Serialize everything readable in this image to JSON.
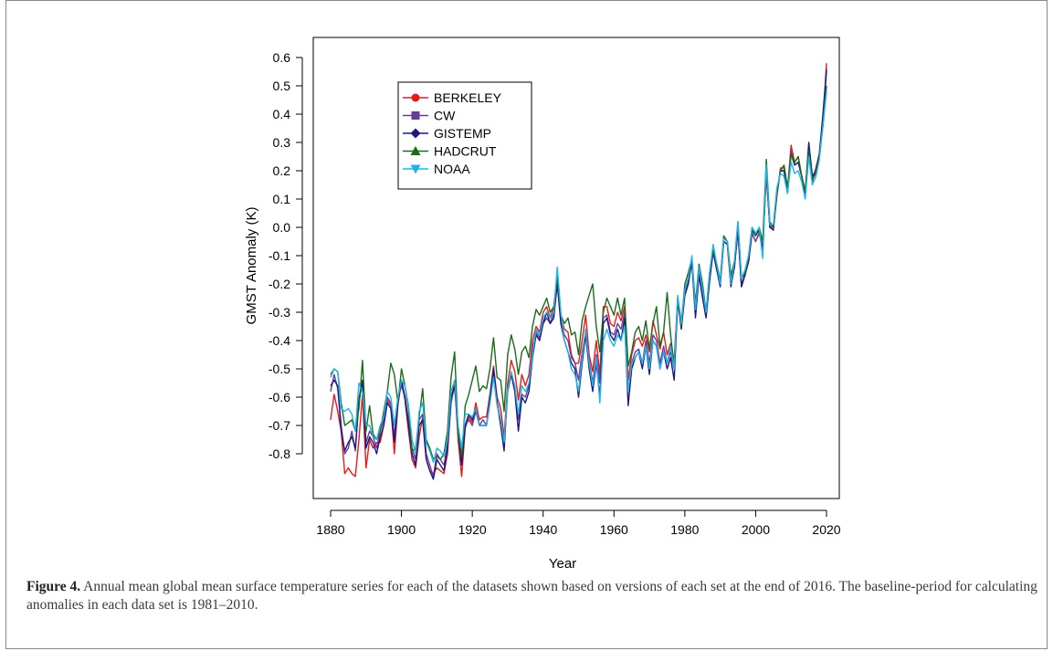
{
  "chart_data": {
    "type": "line",
    "xlabel": "Year",
    "ylabel": "GMST Anomaly (K)",
    "xlim": [
      1880,
      2020
    ],
    "ylim": [
      -0.8,
      0.6
    ],
    "x_ticks": [
      "1880",
      "1900",
      "1920",
      "1940",
      "1960",
      "1980",
      "2000",
      "2020"
    ],
    "y_ticks": [
      "0.6",
      "0.5",
      "0.4",
      "0.3",
      "0.2",
      "0.1",
      "0.0",
      "-0.1",
      "-0.2",
      "-0.3",
      "-0.4",
      "-0.5",
      "-0.6",
      "-0.7",
      "-0.8"
    ],
    "legend_position": "top-left",
    "x_start": 1880,
    "series": [
      {
        "name": "BERKELEY",
        "color": "#e41a1c",
        "marker": "circle",
        "values": [
          -0.68,
          -0.59,
          -0.65,
          -0.72,
          -0.87,
          -0.85,
          -0.87,
          -0.88,
          -0.75,
          -0.59,
          -0.85,
          -0.75,
          -0.78,
          -0.76,
          -0.76,
          -0.7,
          -0.61,
          -0.63,
          -0.8,
          -0.63,
          -0.54,
          -0.61,
          -0.72,
          -0.82,
          -0.85,
          -0.74,
          -0.67,
          -0.82,
          -0.86,
          -0.87,
          -0.85,
          -0.86,
          -0.87,
          -0.8,
          -0.62,
          -0.54,
          -0.75,
          -0.88,
          -0.71,
          -0.67,
          -0.69,
          -0.62,
          -0.68,
          -0.67,
          -0.67,
          -0.59,
          -0.49,
          -0.6,
          -0.64,
          -0.74,
          -0.55,
          -0.47,
          -0.51,
          -0.61,
          -0.52,
          -0.56,
          -0.52,
          -0.4,
          -0.35,
          -0.37,
          -0.3,
          -0.28,
          -0.32,
          -0.28,
          -0.18,
          -0.32,
          -0.36,
          -0.37,
          -0.45,
          -0.48,
          -0.48,
          -0.4,
          -0.31,
          -0.45,
          -0.51,
          -0.4,
          -0.52,
          -0.28,
          -0.28,
          -0.34,
          -0.35,
          -0.3,
          -0.33,
          -0.28,
          -0.54,
          -0.45,
          -0.4,
          -0.39,
          -0.42,
          -0.38,
          -0.44,
          -0.33,
          -0.38,
          -0.43,
          -0.37,
          -0.45,
          -0.41,
          -0.47,
          -0.25,
          -0.33,
          -0.22,
          -0.18,
          -0.13,
          -0.28,
          -0.15,
          -0.23,
          -0.3,
          -0.17,
          -0.09,
          -0.13,
          -0.19,
          -0.04,
          -0.05,
          -0.19,
          -0.13,
          -0.02,
          -0.2,
          -0.17,
          -0.12,
          -0.02,
          -0.05,
          -0.02,
          -0.07,
          0.18,
          0.01,
          0.0,
          0.11,
          0.21,
          0.21,
          0.13,
          0.29,
          0.23,
          0.25,
          0.18,
          0.12,
          0.28,
          0.16,
          0.21,
          0.26,
          0.36,
          0.58
        ]
      },
      {
        "name": "CW",
        "color": "#6a3d9a",
        "marker": "square",
        "values": [
          -0.58,
          -0.52,
          -0.57,
          -0.7,
          -0.8,
          -0.78,
          -0.72,
          -0.79,
          -0.6,
          -0.55,
          -0.76,
          -0.72,
          -0.74,
          -0.78,
          -0.72,
          -0.68,
          -0.6,
          -0.62,
          -0.74,
          -0.6,
          -0.56,
          -0.6,
          -0.68,
          -0.78,
          -0.82,
          -0.68,
          -0.66,
          -0.8,
          -0.84,
          -0.88,
          -0.8,
          -0.82,
          -0.84,
          -0.77,
          -0.62,
          -0.56,
          -0.7,
          -0.82,
          -0.7,
          -0.68,
          -0.7,
          -0.65,
          -0.7,
          -0.68,
          -0.7,
          -0.62,
          -0.52,
          -0.62,
          -0.68,
          -0.77,
          -0.58,
          -0.52,
          -0.57,
          -0.68,
          -0.59,
          -0.6,
          -0.56,
          -0.43,
          -0.37,
          -0.39,
          -0.34,
          -0.32,
          -0.34,
          -0.3,
          -0.18,
          -0.33,
          -0.38,
          -0.4,
          -0.46,
          -0.48,
          -0.54,
          -0.44,
          -0.37,
          -0.47,
          -0.55,
          -0.45,
          -0.55,
          -0.32,
          -0.31,
          -0.37,
          -0.38,
          -0.34,
          -0.36,
          -0.3,
          -0.58,
          -0.48,
          -0.44,
          -0.43,
          -0.48,
          -0.4,
          -0.48,
          -0.38,
          -0.4,
          -0.48,
          -0.42,
          -0.48,
          -0.44,
          -0.5,
          -0.26,
          -0.34,
          -0.23,
          -0.19,
          -0.12,
          -0.3,
          -0.16,
          -0.24,
          -0.31,
          -0.18,
          -0.09,
          -0.15,
          -0.19,
          -0.05,
          -0.06,
          -0.2,
          -0.14,
          -0.01,
          -0.21,
          -0.17,
          -0.12,
          -0.02,
          -0.05,
          -0.02,
          -0.08,
          0.2,
          0.0,
          0.0,
          0.12,
          0.2,
          0.2,
          0.12,
          0.27,
          0.22,
          0.23,
          0.18,
          0.12,
          0.29,
          0.18,
          0.2,
          0.26,
          0.38,
          0.55
        ]
      },
      {
        "name": "GISTEMP",
        "color": "#1a1a80",
        "marker": "diamond",
        "values": [
          -0.56,
          -0.54,
          -0.56,
          -0.72,
          -0.79,
          -0.76,
          -0.74,
          -0.78,
          -0.62,
          -0.54,
          -0.78,
          -0.74,
          -0.76,
          -0.8,
          -0.74,
          -0.7,
          -0.62,
          -0.64,
          -0.76,
          -0.62,
          -0.54,
          -0.6,
          -0.7,
          -0.8,
          -0.84,
          -0.7,
          -0.68,
          -0.82,
          -0.86,
          -0.89,
          -0.82,
          -0.84,
          -0.86,
          -0.78,
          -0.6,
          -0.56,
          -0.72,
          -0.84,
          -0.7,
          -0.66,
          -0.68,
          -0.64,
          -0.7,
          -0.7,
          -0.7,
          -0.6,
          -0.5,
          -0.62,
          -0.7,
          -0.79,
          -0.56,
          -0.52,
          -0.58,
          -0.72,
          -0.6,
          -0.62,
          -0.58,
          -0.46,
          -0.38,
          -0.4,
          -0.34,
          -0.3,
          -0.34,
          -0.32,
          -0.2,
          -0.34,
          -0.4,
          -0.44,
          -0.48,
          -0.5,
          -0.6,
          -0.48,
          -0.38,
          -0.5,
          -0.58,
          -0.48,
          -0.6,
          -0.34,
          -0.32,
          -0.38,
          -0.4,
          -0.36,
          -0.4,
          -0.32,
          -0.63,
          -0.5,
          -0.46,
          -0.44,
          -0.5,
          -0.42,
          -0.52,
          -0.4,
          -0.42,
          -0.5,
          -0.44,
          -0.5,
          -0.46,
          -0.54,
          -0.26,
          -0.36,
          -0.24,
          -0.2,
          -0.12,
          -0.32,
          -0.17,
          -0.25,
          -0.32,
          -0.19,
          -0.08,
          -0.15,
          -0.21,
          -0.05,
          -0.06,
          -0.21,
          -0.14,
          0.0,
          -0.21,
          -0.16,
          -0.12,
          -0.01,
          -0.03,
          -0.01,
          -0.08,
          0.2,
          0.0,
          -0.01,
          0.12,
          0.2,
          0.2,
          0.12,
          0.26,
          0.22,
          0.23,
          0.18,
          0.12,
          0.3,
          0.18,
          0.2,
          0.26,
          0.4,
          0.56
        ]
      },
      {
        "name": "HADCRUT",
        "color": "#1a6b1a",
        "marker": "triangle",
        "values": [
          -0.52,
          -0.5,
          -0.51,
          -0.62,
          -0.7,
          -0.69,
          -0.68,
          -0.72,
          -0.64,
          -0.47,
          -0.72,
          -0.63,
          -0.73,
          -0.75,
          -0.72,
          -0.65,
          -0.58,
          -0.48,
          -0.52,
          -0.62,
          -0.5,
          -0.56,
          -0.64,
          -0.79,
          -0.78,
          -0.67,
          -0.57,
          -0.75,
          -0.78,
          -0.82,
          -0.81,
          -0.82,
          -0.8,
          -0.72,
          -0.53,
          -0.44,
          -0.72,
          -0.81,
          -0.63,
          -0.59,
          -0.54,
          -0.49,
          -0.58,
          -0.56,
          -0.57,
          -0.5,
          -0.39,
          -0.53,
          -0.54,
          -0.65,
          -0.45,
          -0.38,
          -0.43,
          -0.52,
          -0.44,
          -0.42,
          -0.46,
          -0.35,
          -0.29,
          -0.31,
          -0.28,
          -0.25,
          -0.3,
          -0.28,
          -0.17,
          -0.31,
          -0.34,
          -0.32,
          -0.38,
          -0.37,
          -0.45,
          -0.33,
          -0.28,
          -0.24,
          -0.2,
          -0.35,
          -0.44,
          -0.3,
          -0.25,
          -0.28,
          -0.31,
          -0.25,
          -0.31,
          -0.25,
          -0.49,
          -0.44,
          -0.37,
          -0.35,
          -0.4,
          -0.33,
          -0.43,
          -0.34,
          -0.28,
          -0.42,
          -0.37,
          -0.23,
          -0.38,
          -0.49,
          -0.25,
          -0.35,
          -0.2,
          -0.16,
          -0.11,
          -0.27,
          -0.13,
          -0.2,
          -0.3,
          -0.16,
          -0.08,
          -0.13,
          -0.19,
          -0.03,
          -0.05,
          -0.17,
          -0.12,
          0.02,
          -0.18,
          -0.16,
          -0.1,
          0.0,
          -0.03,
          0.0,
          -0.05,
          0.24,
          0.02,
          0.0,
          0.12,
          0.2,
          0.22,
          0.14,
          0.26,
          0.23,
          0.25,
          0.18,
          0.13,
          0.27,
          0.17,
          0.19,
          0.25,
          0.36,
          0.5
        ]
      },
      {
        "name": "NOAA",
        "color": "#1fb4e8",
        "marker": "triangle-down",
        "values": [
          -0.53,
          -0.5,
          -0.51,
          -0.64,
          -0.65,
          -0.64,
          -0.66,
          -0.72,
          -0.55,
          -0.58,
          -0.7,
          -0.7,
          -0.74,
          -0.75,
          -0.7,
          -0.67,
          -0.58,
          -0.6,
          -0.7,
          -0.6,
          -0.54,
          -0.56,
          -0.63,
          -0.75,
          -0.8,
          -0.65,
          -0.62,
          -0.76,
          -0.79,
          -0.83,
          -0.78,
          -0.79,
          -0.81,
          -0.75,
          -0.58,
          -0.54,
          -0.7,
          -0.78,
          -0.66,
          -0.66,
          -0.67,
          -0.64,
          -0.7,
          -0.7,
          -0.7,
          -0.62,
          -0.53,
          -0.63,
          -0.68,
          -0.76,
          -0.57,
          -0.51,
          -0.56,
          -0.66,
          -0.56,
          -0.58,
          -0.55,
          -0.45,
          -0.36,
          -0.38,
          -0.32,
          -0.3,
          -0.32,
          -0.3,
          -0.14,
          -0.3,
          -0.4,
          -0.44,
          -0.5,
          -0.52,
          -0.58,
          -0.46,
          -0.36,
          -0.48,
          -0.56,
          -0.46,
          -0.62,
          -0.4,
          -0.36,
          -0.4,
          -0.42,
          -0.38,
          -0.4,
          -0.35,
          -0.58,
          -0.48,
          -0.46,
          -0.44,
          -0.48,
          -0.42,
          -0.5,
          -0.4,
          -0.42,
          -0.5,
          -0.44,
          -0.48,
          -0.42,
          -0.5,
          -0.24,
          -0.34,
          -0.22,
          -0.18,
          -0.1,
          -0.29,
          -0.14,
          -0.22,
          -0.3,
          -0.16,
          -0.06,
          -0.13,
          -0.2,
          -0.04,
          -0.05,
          -0.2,
          -0.12,
          0.02,
          -0.18,
          -0.15,
          -0.1,
          0.0,
          -0.02,
          0.0,
          -0.11,
          0.22,
          0.01,
          0.01,
          0.14,
          0.19,
          0.18,
          0.12,
          0.23,
          0.19,
          0.2,
          0.16,
          0.1,
          0.25,
          0.15,
          0.18,
          0.24,
          0.36,
          0.48
        ]
      }
    ]
  },
  "caption": {
    "label": "Figure 4.",
    "text": "Annual mean global mean surface temperature series for each of the datasets shown based on versions of each set at the end of 2016. The baseline-period for calculating anomalies in each data set is 1981–2010."
  }
}
